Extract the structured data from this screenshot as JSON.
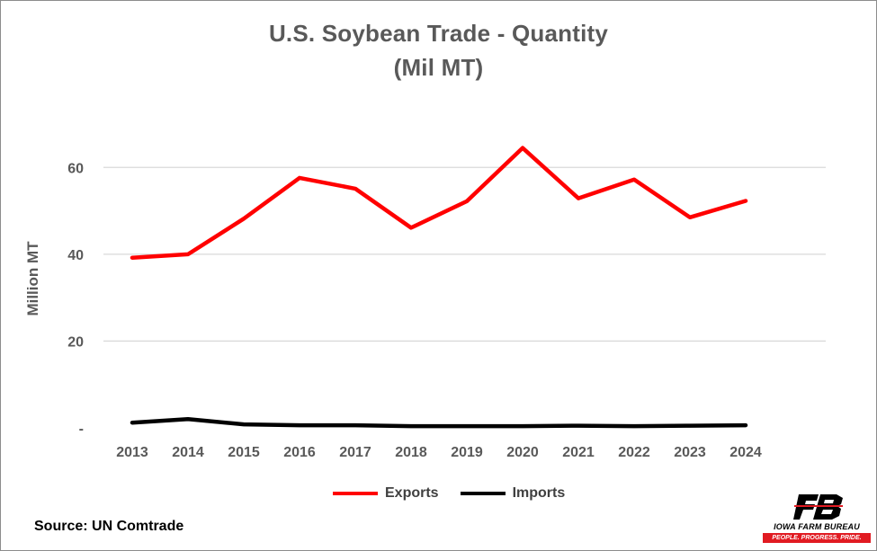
{
  "colors": {
    "exports": "#ff0000",
    "imports": "#000000",
    "grid": "#d9d9d9",
    "text": "#595959"
  },
  "source": "Source: UN Comtrade",
  "logo": {
    "name": "IOWA FARM BUREAU",
    "tagline": "PEOPLE. PROGRESS. PRIDE.",
    "icon": "fb-logo-icon"
  },
  "chart_data": {
    "type": "line",
    "title": "U.S. Soybean Trade - Quantity",
    "subtitle": "(Mil MT)",
    "xlabel": "",
    "ylabel": "Million MT",
    "categories": [
      "2013",
      "2014",
      "2015",
      "2016",
      "2017",
      "2018",
      "2019",
      "2020",
      "2021",
      "2022",
      "2023",
      "2024"
    ],
    "ylim": [
      0,
      70
    ],
    "yticks": [
      0,
      20,
      40,
      60
    ],
    "ytick_labels": [
      "-",
      "20",
      "40",
      "60"
    ],
    "grid": true,
    "legend_position": "bottom",
    "series": [
      {
        "name": "Exports",
        "color": "#ff0000",
        "values": [
          39.2,
          40.0,
          48.2,
          57.6,
          55.1,
          46.1,
          52.2,
          64.5,
          52.9,
          57.2,
          48.5,
          52.3
        ]
      },
      {
        "name": "Imports",
        "color": "#000000",
        "values": [
          1.2,
          2.0,
          0.8,
          0.6,
          0.6,
          0.4,
          0.4,
          0.4,
          0.5,
          0.4,
          0.5,
          0.6
        ]
      }
    ]
  }
}
